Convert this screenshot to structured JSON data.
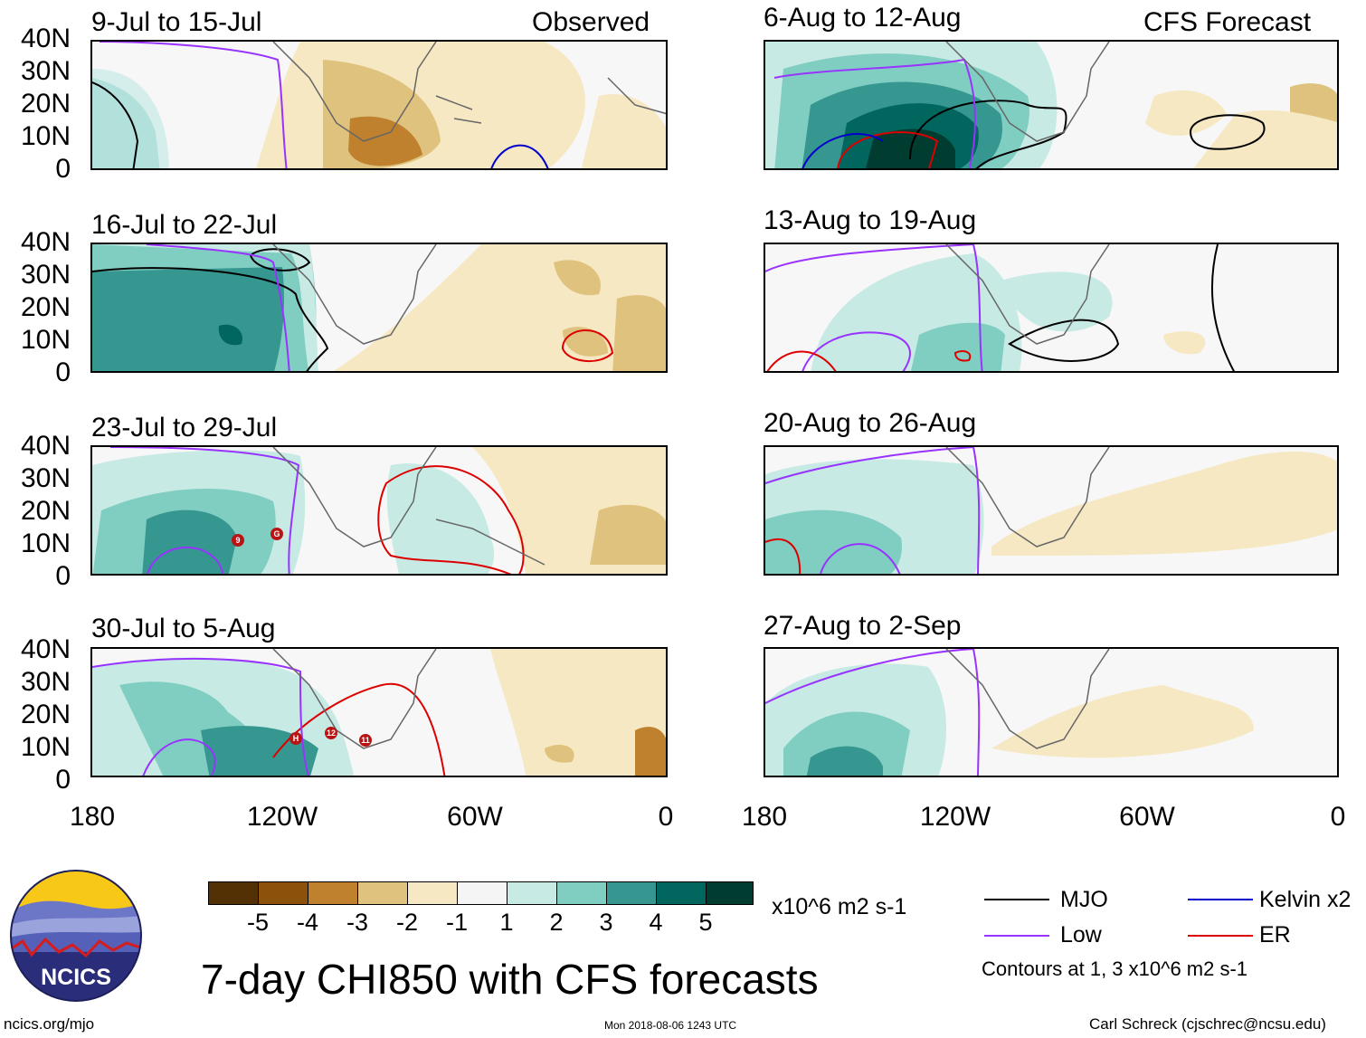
{
  "header": {
    "left_label": "Observed",
    "right_label": "CFS Forecast"
  },
  "panels_observed": [
    {
      "title": "9-Jul to 15-Jul"
    },
    {
      "title": "16-Jul to 22-Jul"
    },
    {
      "title": "23-Jul to 29-Jul"
    },
    {
      "title": "30-Jul to 5-Aug"
    }
  ],
  "panels_forecast": [
    {
      "title": "6-Aug to 12-Aug"
    },
    {
      "title": "13-Aug to 19-Aug"
    },
    {
      "title": "20-Aug to 26-Aug"
    },
    {
      "title": "27-Aug to 2-Sep"
    }
  ],
  "axes": {
    "y_ticks": [
      "40N",
      "30N",
      "20N",
      "10N",
      "0"
    ],
    "x_ticks": [
      "180",
      "120W",
      "60W",
      "0"
    ]
  },
  "storm_markers": {
    "panel3": [
      "9",
      "G"
    ],
    "panel4": [
      "H",
      "12",
      "11"
    ]
  },
  "colorbar": {
    "ticks": [
      "-5",
      "-4",
      "-3",
      "-2",
      "-1",
      "1",
      "2",
      "3",
      "4",
      "5"
    ],
    "colors": [
      "#543005",
      "#8c510a",
      "#bf812d",
      "#dfc27d",
      "#f6e8c3",
      "#f5f5f5",
      "#c7eae5",
      "#80cdc1",
      "#35978f",
      "#01665e",
      "#003c30"
    ],
    "units": "x10^6 m2 s-1"
  },
  "legend": {
    "mjo": "MJO",
    "mjo_color": "#000000",
    "low": "Low",
    "low_color": "#9933ff",
    "kelvin": "Kelvin x2",
    "kelvin_color": "#0000cc",
    "er": "ER",
    "er_color": "#dd0000",
    "note": "Contours at 1, 3 x10^6 m2 s-1"
  },
  "main_title": "7-day CHI850 with CFS forecasts",
  "logo": {
    "text": "NCICS"
  },
  "footer": {
    "left": "ncics.org/mjo",
    "center": "Mon 2018-08-06 1243 UTC",
    "right": "Carl Schreck (cjschrec@ncsu.edu)"
  }
}
